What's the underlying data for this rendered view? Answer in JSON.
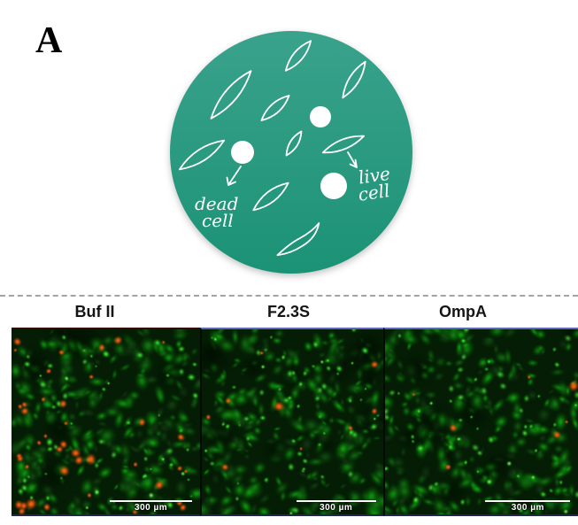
{
  "figure": {
    "panel_label": "A"
  },
  "schematic": {
    "dead_cell_label": {
      "line1": "dead",
      "line2": "cell"
    },
    "live_cell_label": {
      "line1": "live",
      "line2": "cell"
    },
    "dead_cell_outline_count": 9,
    "live_cell_dot_count": 3
  },
  "colors": {
    "dish_top": "#3aa28c",
    "dish_bottom": "#1b9275",
    "sketch": "#ffffff",
    "scalebar": "#ffffff",
    "label_text": "#151515"
  },
  "microscopy": {
    "panels": [
      {
        "label": "Buf II",
        "scale_bar": "300 µm",
        "red_spot_count": 40
      },
      {
        "label": "F2.3S",
        "scale_bar": "300 µm",
        "red_spot_count": 9
      },
      {
        "label": "OmpA",
        "scale_bar": "300 µm",
        "red_spot_count": 8
      }
    ]
  }
}
